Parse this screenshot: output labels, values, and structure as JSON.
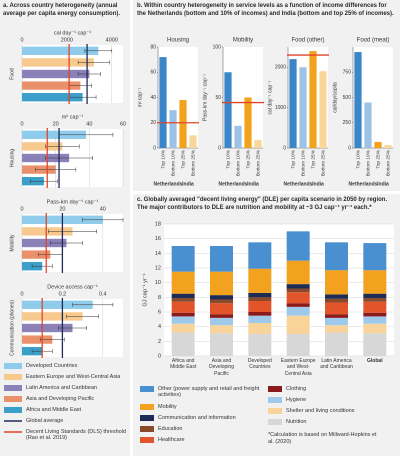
{
  "panel_a": {
    "title": "a. Across country heterogeneity (annual average per capita energy consumption).",
    "legend": [
      {
        "name": "Developed Countries",
        "color": "#8fcbeb"
      },
      {
        "name": "Eastern Europe and West-Central Asia",
        "color": "#f7c98e"
      },
      {
        "name": "Latin America and Caribbean",
        "color": "#8c80b8"
      },
      {
        "name": "Asia and Developing Pacific",
        "color": "#ea916b"
      },
      {
        "name": "Africa and Middle East",
        "color": "#3b9fc9"
      }
    ],
    "global_average": {
      "name": "Global average",
      "color": "#1f2a5c"
    },
    "dls": {
      "name": "Decent Living Standards (DLS) threshold (Rao et al. 2019)",
      "color": "#e0452b"
    }
  },
  "panel_b": {
    "title": "b. Within country heterogeneity in service levels as a function of income differences for the Netherlands (bottom and 10% of incomes) and India (bottom and top 25% of incomes).",
    "categories": [
      "Top 10%",
      "Bottom 10%",
      "Top 25%",
      "Bottom 25%"
    ],
    "colors": [
      "#3a86c8",
      "#9cc3e6",
      "#f2a31b",
      "#f9d79a"
    ],
    "groups": [
      "Netherlands",
      "India"
    ]
  },
  "chart_data": [
    {
      "type": "hbar",
      "ylabel": "Food",
      "xlabel": "cal day⁻¹ cap⁻¹",
      "xlim": [
        0,
        4500
      ],
      "xticks": [
        0,
        2000,
        4000
      ],
      "values": [
        3400,
        3200,
        3000,
        2600,
        2700
      ],
      "errors": [
        600,
        700,
        500,
        500,
        600
      ],
      "global_average": 2900,
      "dls": 2100
    },
    {
      "type": "hbar",
      "ylabel": "Housing",
      "xlabel": "m² cap⁻¹",
      "xlim": [
        0,
        60
      ],
      "xticks": [
        0,
        20,
        40,
        60
      ],
      "values": [
        38,
        24,
        28,
        20,
        13
      ],
      "errors": [
        16,
        10,
        14,
        12,
        8
      ],
      "global_average": 22,
      "dls": 15
    },
    {
      "type": "hbar",
      "ylabel": "Mobility",
      "xlabel": "Pass-km day⁻¹ cap⁻¹",
      "xlim": [
        0,
        50
      ],
      "xticks": [
        0,
        20,
        40
      ],
      "values": [
        40,
        25,
        22,
        14,
        10
      ],
      "errors": [
        10,
        12,
        8,
        6,
        5
      ],
      "global_average": 20,
      "dls": 12
    },
    {
      "type": "hbar",
      "ylabel": "Communication (phones)",
      "xlabel": "Device access cap⁻¹",
      "xlim": [
        0,
        0.5
      ],
      "xticks": [
        0,
        0.2,
        0.4
      ],
      "values": [
        0.35,
        0.3,
        0.25,
        0.15,
        0.1
      ],
      "errors": [
        0.1,
        0.08,
        0.07,
        0.06,
        0.05
      ],
      "global_average": 0.2,
      "dls": 0.1
    },
    {
      "type": "bar",
      "title": "Housing",
      "ylabel": "m² cap⁻¹",
      "ylim": [
        0,
        80
      ],
      "yticks": [
        0,
        20,
        40,
        60,
        80
      ],
      "values": [
        72,
        30,
        38,
        10
      ],
      "dls": 20
    },
    {
      "type": "bar",
      "title": "Mobility",
      "ylabel": "Pass-km day⁻¹ cap⁻¹",
      "ylim": [
        0,
        100
      ],
      "yticks": [
        0,
        50,
        100
      ],
      "values": [
        75,
        22,
        50,
        8
      ],
      "dls": 45
    },
    {
      "type": "bar",
      "title": "Food (other)",
      "ylabel": "cal day⁻¹ cap⁻¹",
      "ylim": [
        0,
        2500
      ],
      "yticks": [
        0,
        1000,
        2000
      ],
      "values": [
        2200,
        2000,
        2400,
        1900
      ],
      "dls": 2300
    },
    {
      "type": "bar",
      "title": "Food (meat)",
      "ylabel": "cal/day/capita",
      "ylim": [
        0,
        1000
      ],
      "yticks": [
        0,
        250,
        500,
        750
      ],
      "values": [
        950,
        450,
        60,
        30
      ]
    },
    {
      "type": "stacked_bar",
      "title": "c. Globally averaged \"decent living energy\" (DLE) per capita scenario in 2050 by region. The major contributors to DLE are nutrition and mobility at ~3 GJ cap⁻¹ yr⁻¹ each.*",
      "ylabel": "GJ cap⁻¹ yr⁻¹",
      "categories": [
        "Africa and Middle East",
        "Asia and Developing Pacific",
        "Developed Countries",
        "Eastern Europe and West-Central Asia",
        "Latin America and Caribbean",
        "Global"
      ],
      "ylim": [
        0,
        18
      ],
      "yticks": [
        0,
        2,
        4,
        6,
        8,
        10,
        12,
        14,
        16,
        18
      ],
      "series": [
        {
          "name": "Nutrition",
          "color": "#d7d7d7",
          "values": [
            3.2,
            3.1,
            3.0,
            3.0,
            3.2,
            3.1
          ]
        },
        {
          "name": "Shelter and living conditions",
          "color": "#f8d49a",
          "values": [
            1.2,
            1.1,
            1.5,
            2.5,
            1.0,
            1.3
          ]
        },
        {
          "name": "Hygiene",
          "color": "#9ec9ea",
          "values": [
            1.0,
            1.0,
            1.0,
            1.2,
            1.0,
            1.0
          ]
        },
        {
          "name": "Clothing",
          "color": "#8b1a1a",
          "values": [
            0.5,
            0.5,
            0.5,
            0.5,
            0.5,
            0.5
          ]
        },
        {
          "name": "Healthcare",
          "color": "#e2542a",
          "values": [
            1.5,
            1.5,
            1.5,
            1.5,
            1.6,
            1.5
          ]
        },
        {
          "name": "Education",
          "color": "#8a4a2a",
          "values": [
            0.5,
            0.5,
            0.5,
            0.5,
            0.5,
            0.5
          ]
        },
        {
          "name": "Communication and information",
          "color": "#1d2b55",
          "values": [
            0.6,
            0.6,
            0.6,
            0.6,
            0.6,
            0.6
          ]
        },
        {
          "name": "Mobility",
          "color": "#f2a21e",
          "values": [
            3.0,
            3.2,
            3.3,
            3.2,
            3.3,
            3.2
          ]
        },
        {
          "name": "Other (power supply and retail and freight activities)",
          "color": "#4a8fcf",
          "values": [
            3.5,
            3.5,
            3.6,
            4.0,
            3.8,
            3.7
          ]
        }
      ],
      "note": "*Calculation is based on Millward-Hopkins et al. (2020)"
    }
  ]
}
